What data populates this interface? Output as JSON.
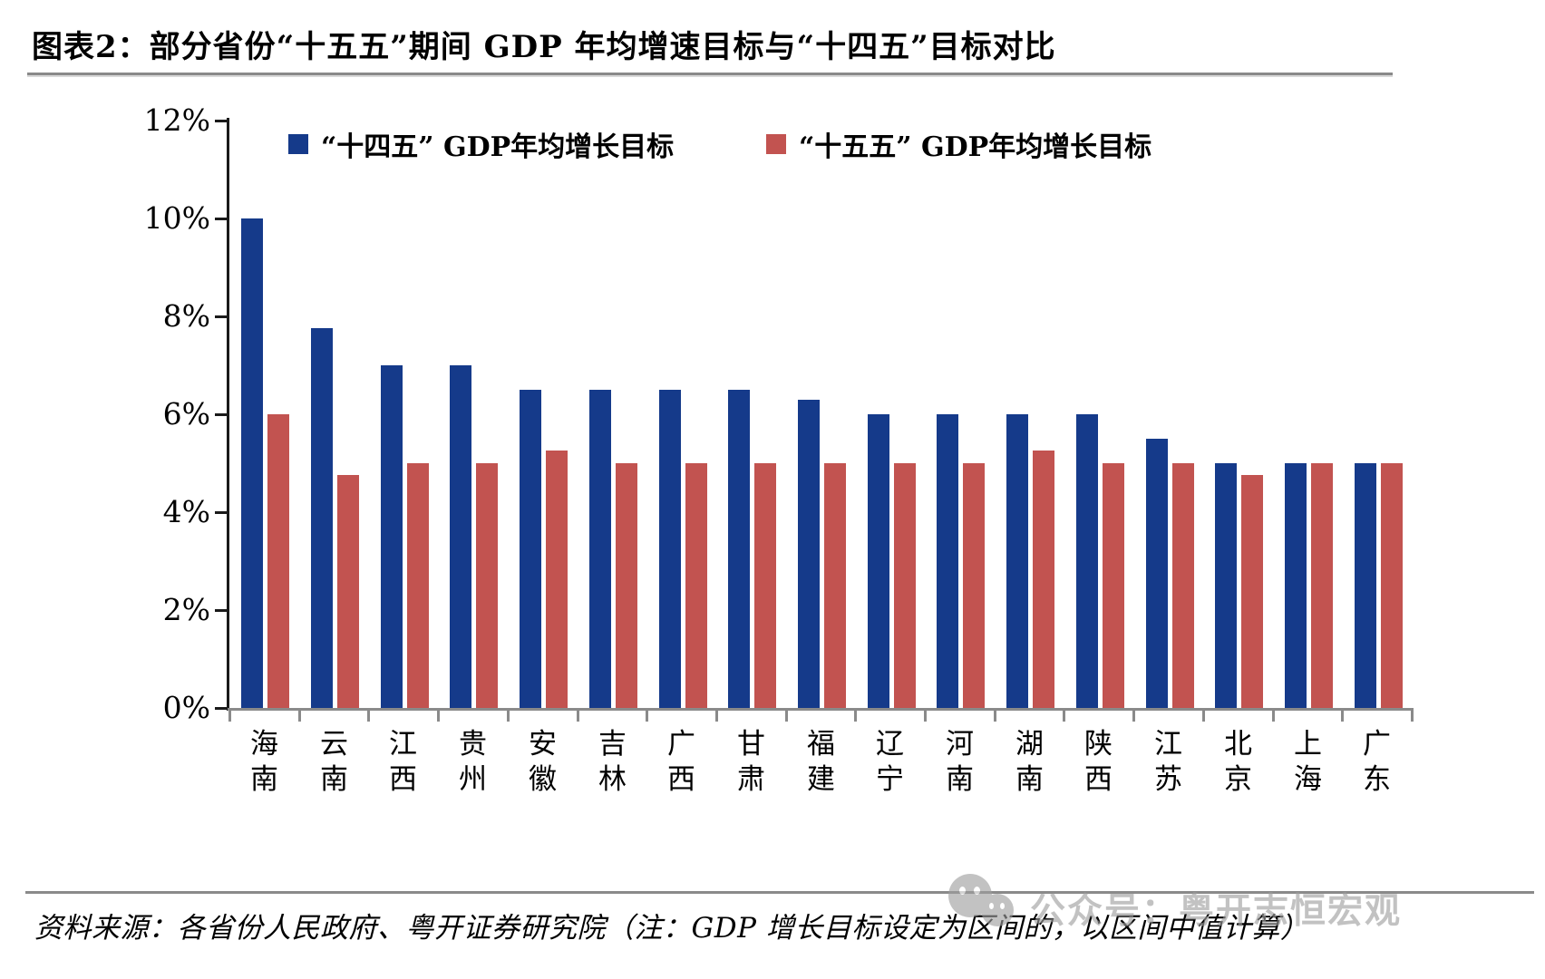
{
  "header": {
    "title": "图表2：部分省份“十五五”期间 GDP 年均增速目标与“十四五”目标对比"
  },
  "chart_data": {
    "type": "bar",
    "title": "部分省份“十五五”期间 GDP 年均增速目标与“十四五”目标对比",
    "categories": [
      "海南",
      "云南",
      "江西",
      "贵州",
      "安徽",
      "吉林",
      "广西",
      "甘肃",
      "福建",
      "辽宁",
      "河南",
      "湖南",
      "陕西",
      "江苏",
      "北京",
      "上海",
      "广东"
    ],
    "series": [
      {
        "name": "“十四五” GDP年均增长目标",
        "color": "#153A8A",
        "values": [
          10,
          7.75,
          7,
          7,
          6.5,
          6.5,
          6.5,
          6.5,
          6.3,
          6,
          6,
          6,
          6,
          5.5,
          5,
          5,
          5
        ]
      },
      {
        "name": "“十五五” GDP年均增长目标",
        "color": "#C25350",
        "values": [
          6,
          4.75,
          5,
          5,
          5.25,
          5,
          5,
          5,
          5,
          5,
          5,
          5.25,
          5,
          5,
          4.75,
          5,
          5
        ]
      }
    ],
    "unit": "%",
    "ylim": [
      0,
      12
    ],
    "y_ticks": [
      {
        "value": 0,
        "label": "0%"
      },
      {
        "value": 2,
        "label": "2%"
      },
      {
        "value": 4,
        "label": "4%"
      },
      {
        "value": 6,
        "label": "6%"
      },
      {
        "value": 8,
        "label": "8%"
      },
      {
        "value": 10,
        "label": "10%"
      },
      {
        "value": 12,
        "label": "12%"
      }
    ],
    "grid": false,
    "legend_position": "top",
    "axis_color": "#8a8a8a"
  },
  "footer": {
    "source_note": "资料来源：各省份人民政府、粤开证券研究院（注：GDP 增长目标设定为区间的，以区间中值计算）"
  },
  "watermark": {
    "text": "公众号：粤开志恒宏观"
  }
}
